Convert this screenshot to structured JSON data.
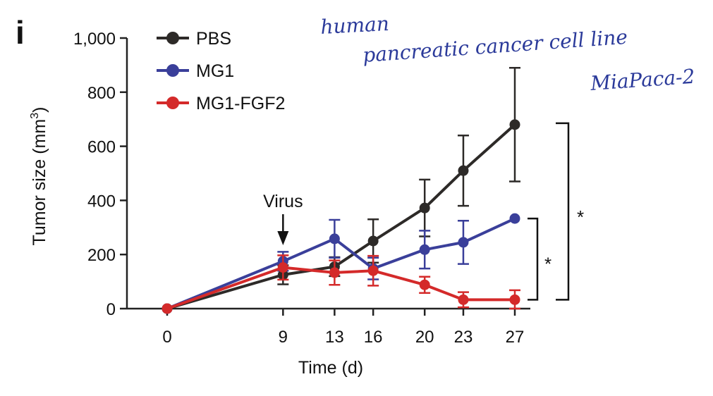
{
  "panel_label": "i",
  "handwritten_note": {
    "line1": "human",
    "line2": "pancreatic cancer cell line",
    "line3": "MiaPaca-2",
    "color": "#2b3a9a"
  },
  "chart_data": {
    "type": "line",
    "title": "",
    "xlabel": "Time (d)",
    "ylabel_main": "Tumor size (mm",
    "ylabel_sup": "3",
    "ylabel_close": ")",
    "x": [
      0,
      9,
      13,
      16,
      20,
      23,
      27
    ],
    "x_tick_labels": [
      "0",
      "9",
      "13",
      "16",
      "20",
      "23",
      "27"
    ],
    "ylim": [
      0,
      1000
    ],
    "y_ticks": [
      0,
      200,
      400,
      600,
      800,
      1000
    ],
    "y_tick_labels": [
      "0",
      "200",
      "400",
      "600",
      "800",
      "1,000"
    ],
    "grid": false,
    "legend_position": "top-left",
    "series": [
      {
        "name": "PBS",
        "color": "#2d2a28",
        "values": [
          0,
          125,
          155,
          250,
          372,
          510,
          680
        ],
        "error": [
          0,
          35,
          35,
          80,
          105,
          130,
          210
        ]
      },
      {
        "name": "MG1",
        "color": "#3a3f9a",
        "values": [
          0,
          175,
          258,
          148,
          218,
          245,
          333
        ],
        "error": [
          0,
          35,
          70,
          40,
          70,
          80,
          0
        ]
      },
      {
        "name": "MG1-FGF2",
        "color": "#d42a2a",
        "values": [
          0,
          152,
          133,
          140,
          88,
          33,
          33
        ],
        "error": [
          0,
          45,
          45,
          55,
          30,
          28,
          35
        ]
      }
    ],
    "annotations": {
      "arrow_label": "Virus",
      "arrow_x": 9,
      "bracket_inner": {
        "from_series": "MG1",
        "to_series": "MG1-FGF2",
        "label": "*"
      },
      "bracket_outer": {
        "from_series": "PBS",
        "to_series": "MG1-FGF2",
        "label": "*"
      }
    }
  }
}
